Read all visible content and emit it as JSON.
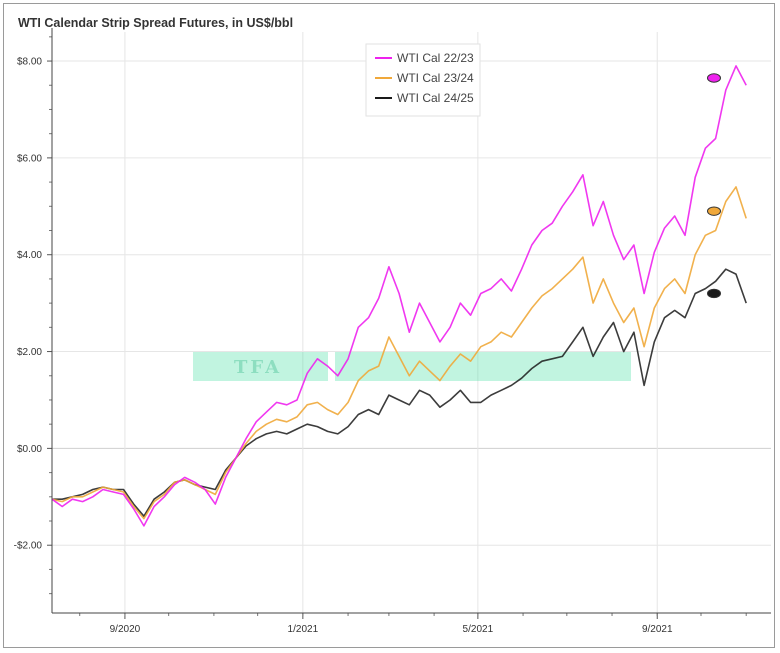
{
  "chart_data": {
    "type": "line",
    "title": "WTI Calendar Strip Spread Futures, in US$/bbl",
    "xlabel": "",
    "ylabel": "",
    "x_range": [
      "2020-07-13",
      "2021-11-18"
    ],
    "ylim": [
      -3.4,
      8.6
    ],
    "y_ticks": [
      {
        "value": 8,
        "label": "$8.00"
      },
      {
        "value": 6,
        "label": "$6.00"
      },
      {
        "value": 4,
        "label": "$4.00"
      },
      {
        "value": 2,
        "label": "$2.00"
      },
      {
        "value": 0,
        "label": "$0.00"
      },
      {
        "value": -2,
        "label": "-$2.00"
      }
    ],
    "x_ticks": [
      {
        "date": "2020-09-01",
        "label": "9/2020"
      },
      {
        "date": "2021-01-01",
        "label": "1/2021"
      },
      {
        "date": "2021-05-01",
        "label": "5/2021"
      },
      {
        "date": "2021-09-01",
        "label": "9/2021"
      }
    ],
    "grid": true,
    "legend": "top-center",
    "watermark_text": "TFA",
    "watermark_color": "#3ddc9e",
    "series": [
      {
        "name": "WTI Cal 22/23",
        "color": "#ee22ee",
        "end_marker": 7.65,
        "points": [
          [
            "2020-07-13",
            -1.05
          ],
          [
            "2020-07-20",
            -1.2
          ],
          [
            "2020-07-27",
            -1.05
          ],
          [
            "2020-08-03",
            -1.1
          ],
          [
            "2020-08-10",
            -1.0
          ],
          [
            "2020-08-17",
            -0.85
          ],
          [
            "2020-08-24",
            -0.9
          ],
          [
            "2020-08-31",
            -0.95
          ],
          [
            "2020-09-07",
            -1.25
          ],
          [
            "2020-09-14",
            -1.6
          ],
          [
            "2020-09-21",
            -1.2
          ],
          [
            "2020-09-28",
            -1.0
          ],
          [
            "2020-10-05",
            -0.75
          ],
          [
            "2020-10-12",
            -0.6
          ],
          [
            "2020-10-19",
            -0.7
          ],
          [
            "2020-10-26",
            -0.85
          ],
          [
            "2020-11-02",
            -1.15
          ],
          [
            "2020-11-09",
            -0.6
          ],
          [
            "2020-11-16",
            -0.2
          ],
          [
            "2020-11-23",
            0.2
          ],
          [
            "2020-11-30",
            0.55
          ],
          [
            "2020-12-07",
            0.75
          ],
          [
            "2020-12-14",
            0.95
          ],
          [
            "2020-12-21",
            0.9
          ],
          [
            "2020-12-28",
            1.0
          ],
          [
            "2021-01-04",
            1.55
          ],
          [
            "2021-01-11",
            1.85
          ],
          [
            "2021-01-18",
            1.7
          ],
          [
            "2021-01-25",
            1.5
          ],
          [
            "2021-02-01",
            1.85
          ],
          [
            "2021-02-08",
            2.5
          ],
          [
            "2021-02-15",
            2.7
          ],
          [
            "2021-02-22",
            3.1
          ],
          [
            "2021-03-01",
            3.75
          ],
          [
            "2021-03-08",
            3.2
          ],
          [
            "2021-03-15",
            2.4
          ],
          [
            "2021-03-22",
            3.0
          ],
          [
            "2021-03-29",
            2.6
          ],
          [
            "2021-04-05",
            2.2
          ],
          [
            "2021-04-12",
            2.5
          ],
          [
            "2021-04-19",
            3.0
          ],
          [
            "2021-04-26",
            2.75
          ],
          [
            "2021-05-03",
            3.2
          ],
          [
            "2021-05-10",
            3.3
          ],
          [
            "2021-05-17",
            3.5
          ],
          [
            "2021-05-24",
            3.25
          ],
          [
            "2021-05-31",
            3.7
          ],
          [
            "2021-06-07",
            4.2
          ],
          [
            "2021-06-14",
            4.5
          ],
          [
            "2021-06-21",
            4.65
          ],
          [
            "2021-06-28",
            5.0
          ],
          [
            "2021-07-05",
            5.3
          ],
          [
            "2021-07-12",
            5.65
          ],
          [
            "2021-07-19",
            4.6
          ],
          [
            "2021-07-26",
            5.1
          ],
          [
            "2021-08-02",
            4.4
          ],
          [
            "2021-08-09",
            3.9
          ],
          [
            "2021-08-16",
            4.2
          ],
          [
            "2021-08-23",
            3.2
          ],
          [
            "2021-08-30",
            4.05
          ],
          [
            "2021-09-06",
            4.55
          ],
          [
            "2021-09-13",
            4.8
          ],
          [
            "2021-09-20",
            4.4
          ],
          [
            "2021-09-27",
            5.6
          ],
          [
            "2021-10-04",
            6.2
          ],
          [
            "2021-10-11",
            6.4
          ],
          [
            "2021-10-18",
            7.4
          ],
          [
            "2021-10-25",
            7.9
          ],
          [
            "2021-11-01",
            7.5
          ]
        ]
      },
      {
        "name": "WTI Cal 23/24",
        "color": "#f0a83a",
        "end_marker": 4.9,
        "points": [
          [
            "2020-07-13",
            -1.05
          ],
          [
            "2020-07-20",
            -1.1
          ],
          [
            "2020-07-27",
            -1.0
          ],
          [
            "2020-08-03",
            -1.0
          ],
          [
            "2020-08-10",
            -0.9
          ],
          [
            "2020-08-17",
            -0.8
          ],
          [
            "2020-08-24",
            -0.85
          ],
          [
            "2020-08-31",
            -0.9
          ],
          [
            "2020-09-07",
            -1.2
          ],
          [
            "2020-09-14",
            -1.45
          ],
          [
            "2020-09-21",
            -1.1
          ],
          [
            "2020-09-28",
            -0.95
          ],
          [
            "2020-10-05",
            -0.7
          ],
          [
            "2020-10-12",
            -0.65
          ],
          [
            "2020-10-19",
            -0.75
          ],
          [
            "2020-10-26",
            -0.85
          ],
          [
            "2020-11-02",
            -0.95
          ],
          [
            "2020-11-09",
            -0.5
          ],
          [
            "2020-11-16",
            -0.2
          ],
          [
            "2020-11-23",
            0.1
          ],
          [
            "2020-11-30",
            0.35
          ],
          [
            "2020-12-07",
            0.5
          ],
          [
            "2020-12-14",
            0.6
          ],
          [
            "2020-12-21",
            0.55
          ],
          [
            "2020-12-28",
            0.65
          ],
          [
            "2021-01-04",
            0.9
          ],
          [
            "2021-01-11",
            0.95
          ],
          [
            "2021-01-18",
            0.8
          ],
          [
            "2021-01-25",
            0.7
          ],
          [
            "2021-02-01",
            0.95
          ],
          [
            "2021-02-08",
            1.4
          ],
          [
            "2021-02-15",
            1.6
          ],
          [
            "2021-02-22",
            1.7
          ],
          [
            "2021-03-01",
            2.3
          ],
          [
            "2021-03-08",
            1.9
          ],
          [
            "2021-03-15",
            1.5
          ],
          [
            "2021-03-22",
            1.8
          ],
          [
            "2021-03-29",
            1.6
          ],
          [
            "2021-04-05",
            1.4
          ],
          [
            "2021-04-12",
            1.7
          ],
          [
            "2021-04-19",
            1.95
          ],
          [
            "2021-04-26",
            1.8
          ],
          [
            "2021-05-03",
            2.1
          ],
          [
            "2021-05-10",
            2.2
          ],
          [
            "2021-05-17",
            2.4
          ],
          [
            "2021-05-24",
            2.3
          ],
          [
            "2021-05-31",
            2.6
          ],
          [
            "2021-06-07",
            2.9
          ],
          [
            "2021-06-14",
            3.15
          ],
          [
            "2021-06-21",
            3.3
          ],
          [
            "2021-06-28",
            3.5
          ],
          [
            "2021-07-05",
            3.7
          ],
          [
            "2021-07-12",
            3.95
          ],
          [
            "2021-07-19",
            3.0
          ],
          [
            "2021-07-26",
            3.5
          ],
          [
            "2021-08-02",
            3.0
          ],
          [
            "2021-08-09",
            2.6
          ],
          [
            "2021-08-16",
            2.9
          ],
          [
            "2021-08-23",
            2.1
          ],
          [
            "2021-08-30",
            2.9
          ],
          [
            "2021-09-06",
            3.3
          ],
          [
            "2021-09-13",
            3.5
          ],
          [
            "2021-09-20",
            3.2
          ],
          [
            "2021-09-27",
            4.0
          ],
          [
            "2021-10-04",
            4.4
          ],
          [
            "2021-10-11",
            4.5
          ],
          [
            "2021-10-18",
            5.1
          ],
          [
            "2021-10-25",
            5.4
          ],
          [
            "2021-11-01",
            4.75
          ]
        ]
      },
      {
        "name": "WTI Cal 24/25",
        "color": "#1a1a1a",
        "end_marker": 3.2,
        "points": [
          [
            "2020-07-13",
            -1.05
          ],
          [
            "2020-07-20",
            -1.05
          ],
          [
            "2020-07-27",
            -1.0
          ],
          [
            "2020-08-03",
            -0.95
          ],
          [
            "2020-08-10",
            -0.85
          ],
          [
            "2020-08-17",
            -0.8
          ],
          [
            "2020-08-24",
            -0.85
          ],
          [
            "2020-08-31",
            -0.85
          ],
          [
            "2020-09-07",
            -1.15
          ],
          [
            "2020-09-14",
            -1.4
          ],
          [
            "2020-09-21",
            -1.05
          ],
          [
            "2020-09-28",
            -0.9
          ],
          [
            "2020-10-05",
            -0.7
          ],
          [
            "2020-10-12",
            -0.65
          ],
          [
            "2020-10-19",
            -0.75
          ],
          [
            "2020-10-26",
            -0.8
          ],
          [
            "2020-11-02",
            -0.85
          ],
          [
            "2020-11-09",
            -0.45
          ],
          [
            "2020-11-16",
            -0.2
          ],
          [
            "2020-11-23",
            0.05
          ],
          [
            "2020-11-30",
            0.2
          ],
          [
            "2020-12-07",
            0.3
          ],
          [
            "2020-12-14",
            0.35
          ],
          [
            "2020-12-21",
            0.3
          ],
          [
            "2020-12-28",
            0.4
          ],
          [
            "2021-01-04",
            0.5
          ],
          [
            "2021-01-11",
            0.45
          ],
          [
            "2021-01-18",
            0.35
          ],
          [
            "2021-01-25",
            0.3
          ],
          [
            "2021-02-01",
            0.45
          ],
          [
            "2021-02-08",
            0.7
          ],
          [
            "2021-02-15",
            0.8
          ],
          [
            "2021-02-22",
            0.7
          ],
          [
            "2021-03-01",
            1.1
          ],
          [
            "2021-03-08",
            1.0
          ],
          [
            "2021-03-15",
            0.9
          ],
          [
            "2021-03-22",
            1.2
          ],
          [
            "2021-03-29",
            1.1
          ],
          [
            "2021-04-05",
            0.85
          ],
          [
            "2021-04-12",
            1.0
          ],
          [
            "2021-04-19",
            1.2
          ],
          [
            "2021-04-26",
            0.95
          ],
          [
            "2021-05-03",
            0.95
          ],
          [
            "2021-05-10",
            1.1
          ],
          [
            "2021-05-17",
            1.2
          ],
          [
            "2021-05-24",
            1.3
          ],
          [
            "2021-05-31",
            1.45
          ],
          [
            "2021-06-07",
            1.65
          ],
          [
            "2021-06-14",
            1.8
          ],
          [
            "2021-06-21",
            1.85
          ],
          [
            "2021-06-28",
            1.9
          ],
          [
            "2021-07-05",
            2.2
          ],
          [
            "2021-07-12",
            2.5
          ],
          [
            "2021-07-19",
            1.9
          ],
          [
            "2021-07-26",
            2.3
          ],
          [
            "2021-08-02",
            2.6
          ],
          [
            "2021-08-09",
            2.0
          ],
          [
            "2021-08-16",
            2.4
          ],
          [
            "2021-08-23",
            1.3
          ],
          [
            "2021-08-30",
            2.2
          ],
          [
            "2021-09-06",
            2.7
          ],
          [
            "2021-09-13",
            2.85
          ],
          [
            "2021-09-20",
            2.7
          ],
          [
            "2021-09-27",
            3.2
          ],
          [
            "2021-10-04",
            3.3
          ],
          [
            "2021-10-11",
            3.45
          ],
          [
            "2021-10-18",
            3.7
          ],
          [
            "2021-10-25",
            3.6
          ],
          [
            "2021-11-01",
            3.0
          ]
        ]
      }
    ]
  }
}
